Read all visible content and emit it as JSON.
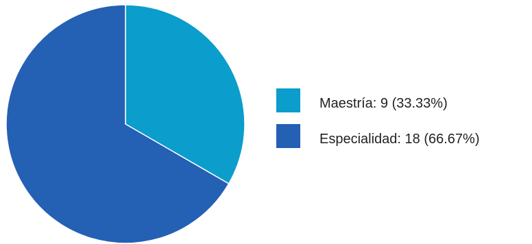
{
  "chart_data": {
    "type": "pie",
    "title": "",
    "legend_position": "right",
    "slices": [
      {
        "label": "Maestría: 9 (33.33%)",
        "category": "Maestría",
        "value": 9,
        "percent": 33.33,
        "color": "#0b9dcc"
      },
      {
        "label": "Especialidad: 18 (66.67%)",
        "category": "Especialidad",
        "value": 18,
        "percent": 66.67,
        "color": "#2460b4"
      }
    ]
  }
}
